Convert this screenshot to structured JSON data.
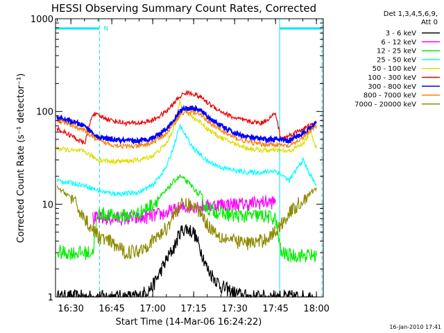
{
  "footer_timestamp": "16-Jan-2010 17:41",
  "chart_data": {
    "type": "line",
    "title": "HESSI Observing Summary Count Rates, Corrected",
    "xlabel": "Start Time (14-Mar-06 16:24:22)",
    "ylabel": "Corrected Count Rate (s⁻¹ detector⁻¹)",
    "y_scale": "log",
    "ylim": [
      1,
      1000
    ],
    "xlim": [
      "16:24:22",
      "18:02:30"
    ],
    "x_ticks": [
      "16:30",
      "16:45",
      "17:00",
      "17:15",
      "17:30",
      "17:45",
      "18:00"
    ],
    "y_ticks": [
      "1",
      "10",
      "100",
      "1000"
    ],
    "grid": false,
    "legend_position": "right",
    "legend_header": [
      "Det 1,3,4,5,6,9,",
      "Att 0"
    ],
    "background_color": "#ffffff",
    "axes_color": "#000000",
    "annotation_color": "#00e5ee",
    "annotations": {
      "night_periods": [
        [
          "16:24:22",
          "16:40:30"
        ],
        [
          "17:46:30",
          "18:02:00"
        ]
      ],
      "night_label": "N",
      "saa_boundaries": [
        "16:24:22",
        "16:40:30",
        "17:46:30",
        "18:02:00"
      ]
    },
    "series": [
      {
        "name": "3 - 6 keV",
        "color": "#000000",
        "x": [
          "16:25",
          "16:30",
          "16:35",
          "16:40",
          "16:45",
          "16:50",
          "16:55",
          "17:00",
          "17:05",
          "17:08",
          "17:10",
          "17:12",
          "17:15",
          "17:18",
          "17:20",
          "17:25",
          "17:30",
          "17:35",
          "17:40",
          "17:45",
          "17:50",
          "17:55",
          "18:00"
        ],
        "y": [
          1.0,
          1.0,
          1.0,
          1.0,
          1.0,
          1.0,
          1.0,
          1.3,
          2.5,
          3.5,
          5.0,
          5.5,
          5.0,
          3.0,
          2.0,
          1.3,
          1.1,
          1.0,
          1.0,
          1.0,
          1.0,
          1.0,
          1.0
        ]
      },
      {
        "name": "6 - 12 keV",
        "color": "#ff00ff",
        "x": [
          "16:38",
          "16:40",
          "16:45",
          "16:50",
          "16:55",
          "17:00",
          "17:05",
          "17:10",
          "17:15",
          "17:20",
          "17:25",
          "17:30",
          "17:35",
          "17:40",
          "17:45"
        ],
        "y": [
          7.0,
          7.0,
          7.0,
          7.0,
          7.0,
          7.5,
          8.0,
          9.0,
          9.5,
          9.5,
          10.0,
          10.0,
          10.0,
          10.5,
          10.5
        ]
      },
      {
        "name": "12 - 25 keV",
        "color": "#00ee00",
        "x": [
          "16:25",
          "16:35",
          "16:38",
          "16:40",
          "16:45",
          "16:50",
          "16:55",
          "17:00",
          "17:05",
          "17:08",
          "17:10",
          "17:12",
          "17:15",
          "17:18",
          "17:20",
          "17:25",
          "17:30",
          "17:35",
          "17:40",
          "17:45",
          "17:47",
          "17:50",
          "17:55",
          "18:00"
        ],
        "y": [
          3.0,
          3.0,
          3.0,
          8.0,
          7.5,
          7.5,
          8.0,
          10.0,
          14.0,
          18.0,
          20.0,
          18.0,
          15.0,
          11.0,
          9.0,
          8.0,
          7.5,
          7.5,
          7.5,
          7.0,
          3.0,
          2.8,
          2.8,
          2.8
        ]
      },
      {
        "name": "25 - 50 keV",
        "color": "#00ffff",
        "x": [
          "16:25",
          "16:30",
          "16:35",
          "16:40",
          "16:45",
          "16:50",
          "16:55",
          "17:00",
          "17:05",
          "17:08",
          "17:10",
          "17:12",
          "17:15",
          "17:18",
          "17:20",
          "17:25",
          "17:30",
          "17:35",
          "17:40",
          "17:45",
          "17:50",
          "17:55",
          "17:58",
          "18:00"
        ],
        "y": [
          18,
          17,
          16,
          14,
          13,
          13,
          13.5,
          16,
          25,
          45,
          70,
          55,
          40,
          33,
          29,
          25,
          23,
          22,
          22,
          23,
          18,
          30,
          20,
          16
        ]
      },
      {
        "name": "50 - 100 keV",
        "color": "#dddd00",
        "x": [
          "16:25",
          "16:30",
          "16:35",
          "16:40",
          "16:45",
          "16:50",
          "16:55",
          "17:00",
          "17:05",
          "17:08",
          "17:10",
          "17:12",
          "17:15",
          "17:18",
          "17:20",
          "17:25",
          "17:30",
          "17:35",
          "17:40",
          "17:45",
          "17:50",
          "17:55",
          "17:58",
          "18:00"
        ],
        "y": [
          40,
          38,
          37,
          30,
          29,
          29,
          30,
          33,
          45,
          70,
          130,
          100,
          85,
          75,
          65,
          52,
          45,
          40,
          38,
          38,
          37,
          45,
          60,
          40
        ]
      },
      {
        "name": "100 - 300 keV",
        "color": "#ee0000",
        "x": [
          "16:25",
          "16:30",
          "16:35",
          "16:38",
          "16:40",
          "16:45",
          "16:50",
          "16:55",
          "17:00",
          "17:05",
          "17:08",
          "17:10",
          "17:12",
          "17:15",
          "17:18",
          "17:20",
          "17:25",
          "17:30",
          "17:35",
          "17:40",
          "17:45",
          "17:47",
          "17:50",
          "17:55",
          "18:00"
        ],
        "y": [
          65,
          55,
          45,
          95,
          90,
          80,
          75,
          75,
          80,
          100,
          125,
          145,
          160,
          155,
          140,
          125,
          100,
          85,
          78,
          75,
          95,
          50,
          55,
          65,
          75
        ]
      },
      {
        "name": "300 - 800 keV",
        "color": "#0000ff",
        "x": [
          "16:25",
          "16:30",
          "16:35",
          "16:40",
          "16:45",
          "16:50",
          "16:55",
          "17:00",
          "17:05",
          "17:08",
          "17:10",
          "17:12",
          "17:15",
          "17:18",
          "17:20",
          "17:25",
          "17:30",
          "17:35",
          "17:40",
          "17:45",
          "17:50",
          "17:55",
          "18:00"
        ],
        "y": [
          85,
          78,
          70,
          52,
          50,
          48,
          48,
          52,
          65,
          82,
          100,
          108,
          108,
          100,
          88,
          70,
          58,
          53,
          50,
          50,
          48,
          58,
          75
        ]
      },
      {
        "name": "800 - 7000 keV",
        "color": "#ff8000",
        "x": [
          "16:25",
          "16:30",
          "16:35",
          "16:40",
          "16:45",
          "16:50",
          "16:55",
          "17:00",
          "17:05",
          "17:08",
          "17:10",
          "17:12",
          "17:15",
          "17:18",
          "17:20",
          "17:25",
          "17:30",
          "17:35",
          "17:40",
          "17:45",
          "17:50",
          "17:55",
          "18:00"
        ],
        "y": [
          80,
          72,
          62,
          48,
          44,
          42,
          42,
          46,
          58,
          75,
          92,
          98,
          98,
          90,
          80,
          62,
          52,
          47,
          44,
          44,
          42,
          52,
          70
        ]
      },
      {
        "name": "7000 - 20000 keV",
        "color": "#8b8b00",
        "x": [
          "16:25",
          "16:30",
          "16:35",
          "16:40",
          "16:45",
          "16:50",
          "16:55",
          "17:00",
          "17:05",
          "17:08",
          "17:10",
          "17:12",
          "17:15",
          "17:18",
          "17:20",
          "17:25",
          "17:30",
          "17:35",
          "17:40",
          "17:45",
          "17:50",
          "17:55",
          "18:00"
        ],
        "y": [
          15,
          12,
          7,
          4.5,
          3.8,
          3.0,
          3.2,
          4.0,
          5.5,
          8.0,
          9.5,
          10.0,
          9.5,
          8.0,
          6.0,
          4.5,
          4.0,
          3.8,
          4.0,
          5.0,
          8.0,
          11,
          15
        ]
      }
    ]
  }
}
